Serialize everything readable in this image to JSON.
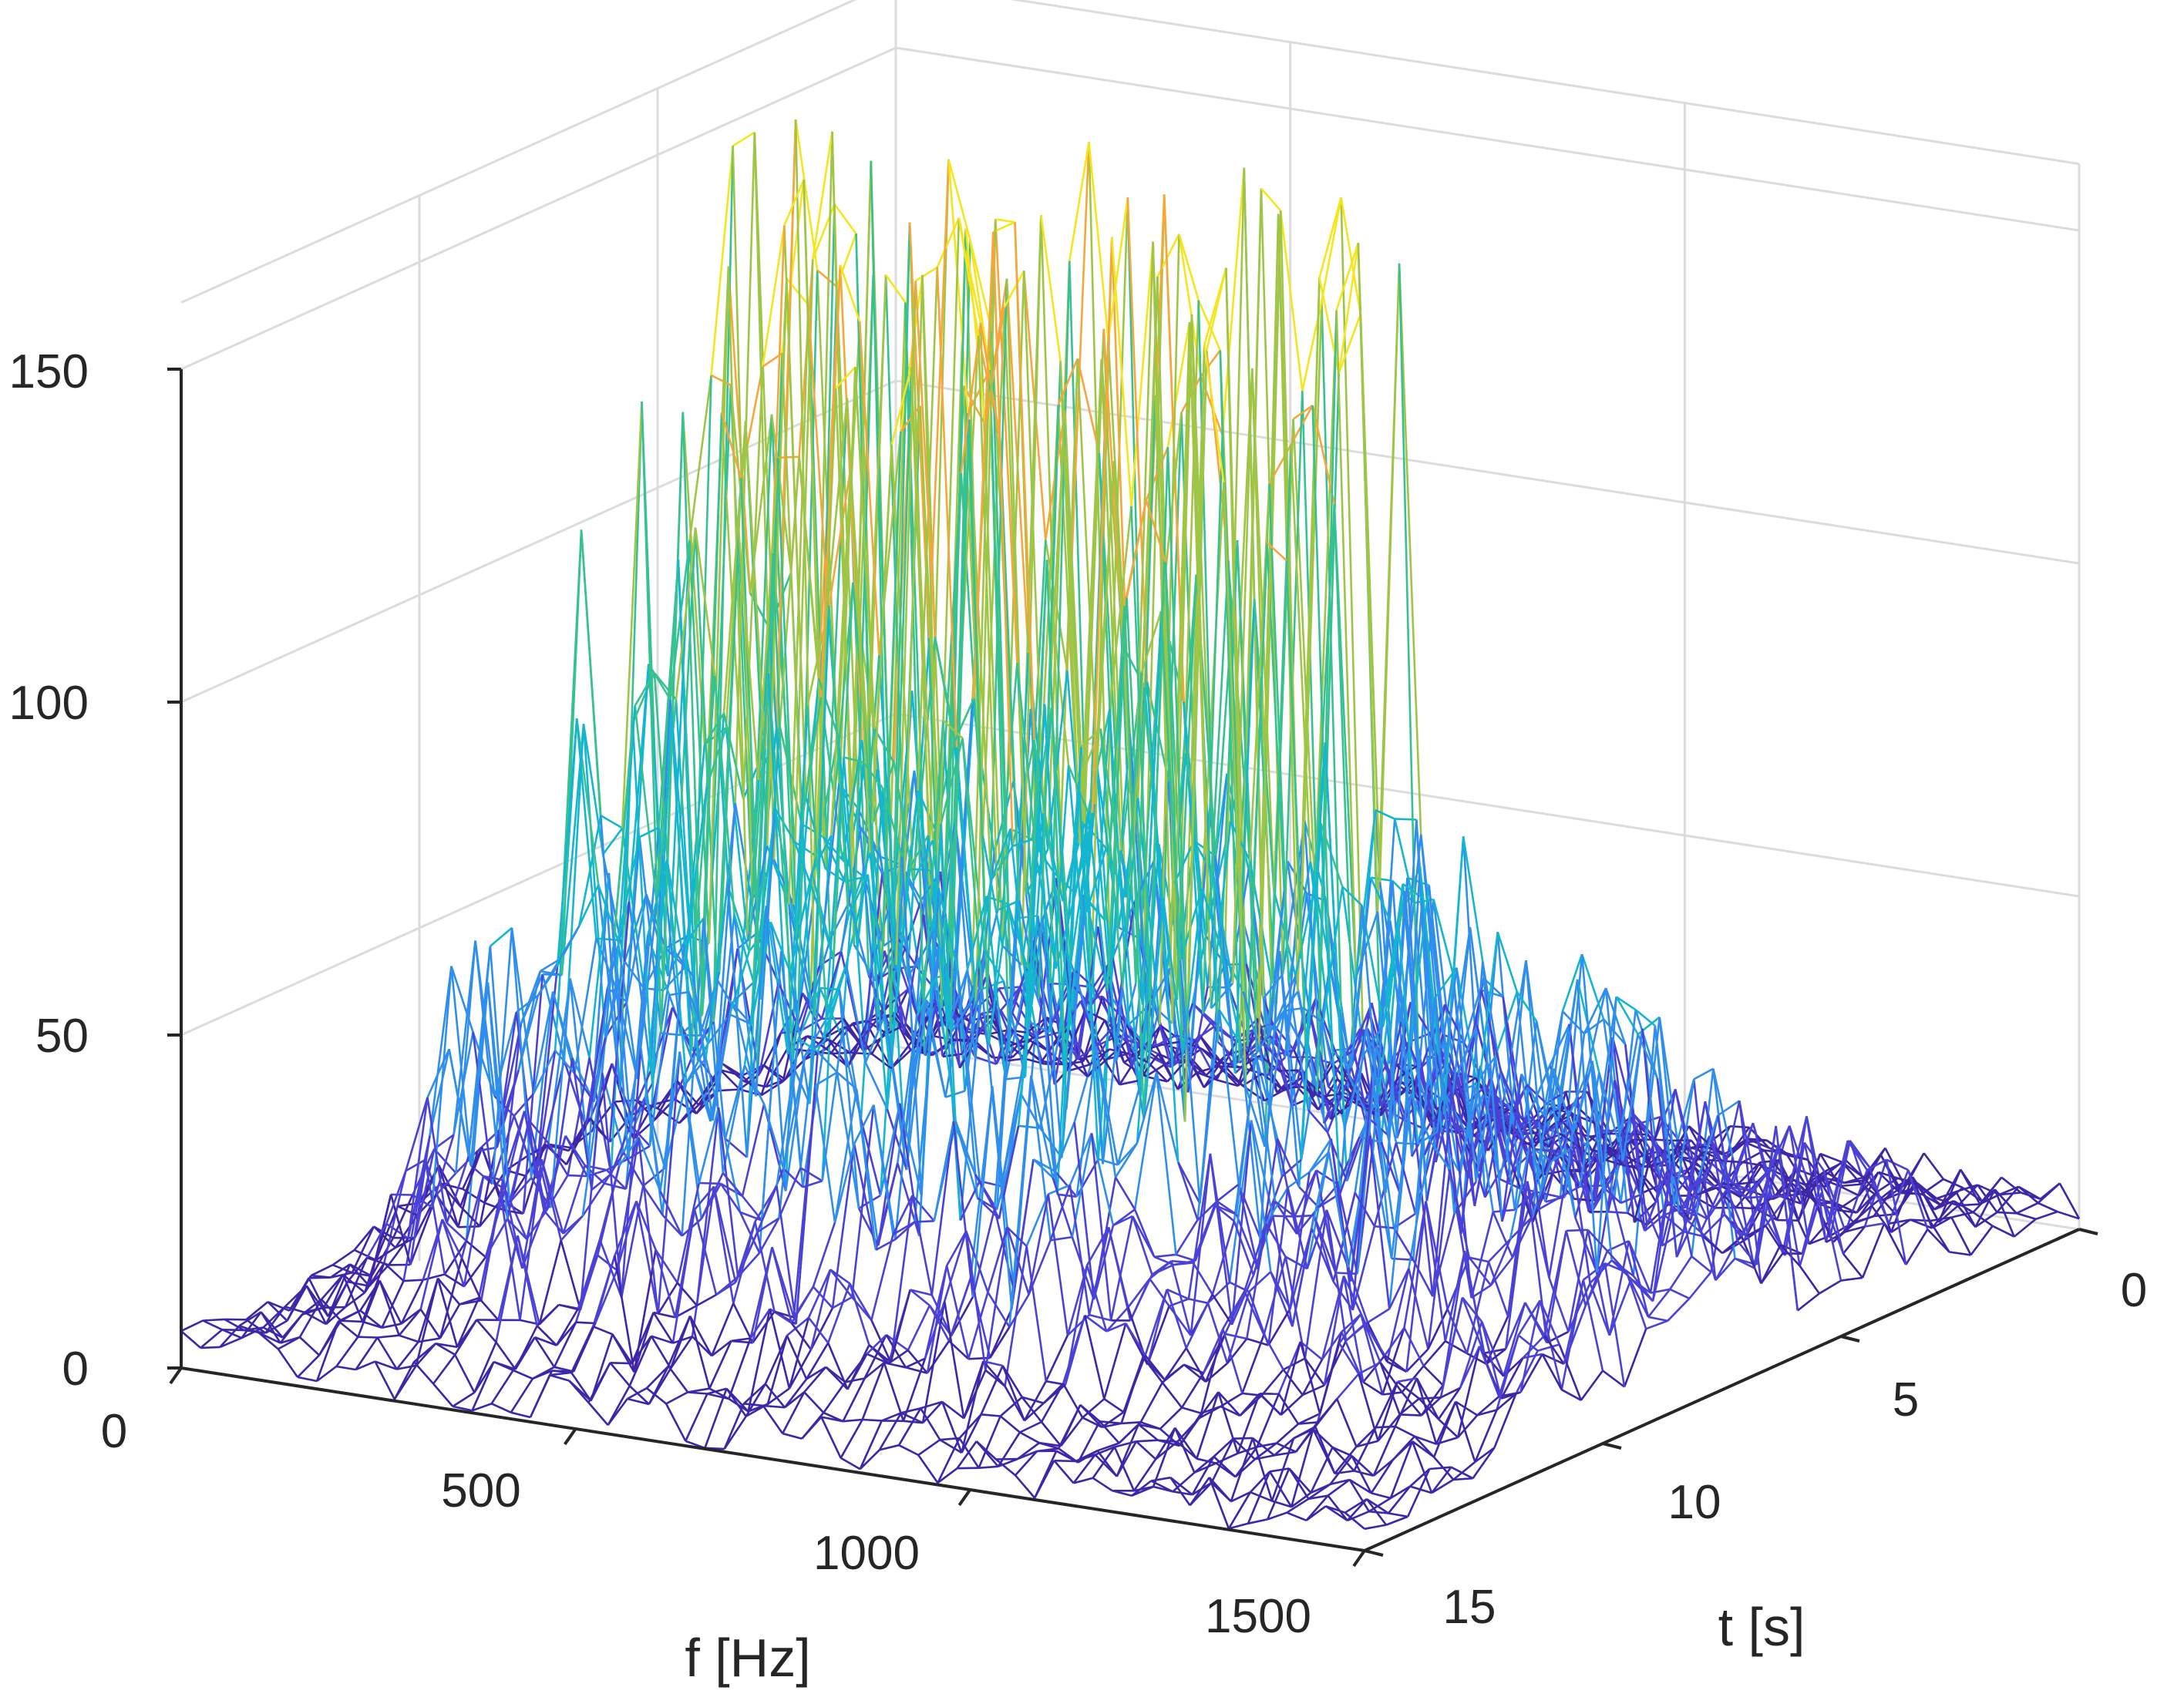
{
  "chart_data": {
    "type": "surface-mesh-3d",
    "title": "",
    "xlabel": "f [Hz]",
    "ylabel": "t [s]",
    "zlabel": "",
    "x_ticks": [
      "0",
      "500",
      "1000",
      "1500"
    ],
    "y_ticks": [
      "0",
      "5",
      "10",
      "15"
    ],
    "z_ticks": [
      "0",
      "50",
      "100",
      "150"
    ],
    "xlim": [
      0,
      1500
    ],
    "ylim": [
      0,
      15
    ],
    "zlim": [
      0,
      160
    ],
    "grid": true,
    "colormap": "parula",
    "colors": [
      "#3e26a8",
      "#4a42d6",
      "#2f8eeb",
      "#14b6cf",
      "#37c191",
      "#9fc547",
      "#f6a63b",
      "#f5e51e"
    ],
    "surface_summary": [
      {
        "f_range": [
          0,
          100
        ],
        "t_range": [
          0,
          15
        ],
        "z_peak": 25
      },
      {
        "f_range": [
          100,
          900
        ],
        "t_range": [
          0,
          15
        ],
        "z_peak": 155
      },
      {
        "f_range": [
          900,
          1500
        ],
        "t_range": [
          0,
          15
        ],
        "z_peak": 60
      }
    ]
  }
}
